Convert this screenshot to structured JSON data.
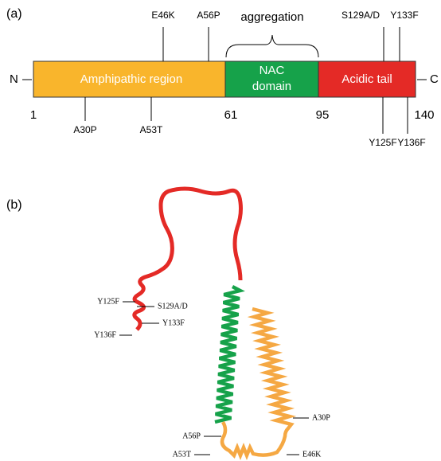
{
  "panel_a": {
    "label": "(a)",
    "n_terminus": "N",
    "c_terminus": "C",
    "domains": [
      "Amphipathic region",
      "NAC domain",
      "Acidic tail"
    ],
    "aggregation": "aggregation",
    "top_mutations": [
      "E46K",
      "A56P",
      "S129A/D",
      "Y133F"
    ],
    "bottom_mutations": [
      "A30P",
      "A53T",
      "Y125F",
      "Y136F"
    ],
    "residues": [
      "1",
      "61",
      "95",
      "140"
    ]
  },
  "panel_b": {
    "label": "(b)",
    "mutations": [
      "Y125F",
      "S129A/D",
      "Y133F",
      "Y136F",
      "A30P",
      "A56P",
      "A53T",
      "E46K"
    ]
  }
}
